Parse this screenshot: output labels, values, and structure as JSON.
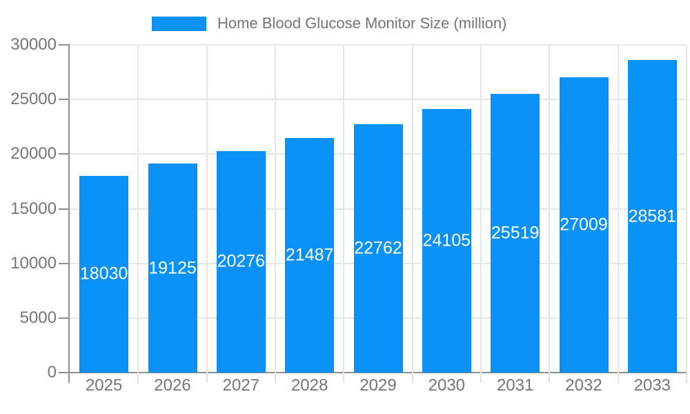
{
  "legend": {
    "label": "Home Blood Glucose Monitor Size (million)"
  },
  "colors": {
    "bar": "#0991f8",
    "grid": "#e6e6e6",
    "axis": "#8f8f8f",
    "tick_minor": "#e0e0e0",
    "axis_text": "#757575",
    "value_label_text": "#ffffff",
    "background": "#ffffff"
  },
  "chart_data": {
    "type": "bar",
    "title": "Home Blood Glucose Monitor Size (million)",
    "series_name": "Home Blood Glucose Monitor Size (million)",
    "categories": [
      "2025",
      "2026",
      "2027",
      "2028",
      "2029",
      "2030",
      "2031",
      "2032",
      "2033"
    ],
    "values": [
      18030,
      19125,
      20276,
      21487,
      22762,
      24105,
      25519,
      27009,
      28581
    ],
    "xlabel": "",
    "ylabel": "",
    "ylim": [
      0,
      30000
    ],
    "yticks": [
      0,
      5000,
      10000,
      15000,
      20000,
      25000,
      30000
    ],
    "grid": "both",
    "legend_position": "top-center",
    "value_labels": "inside-center"
  }
}
